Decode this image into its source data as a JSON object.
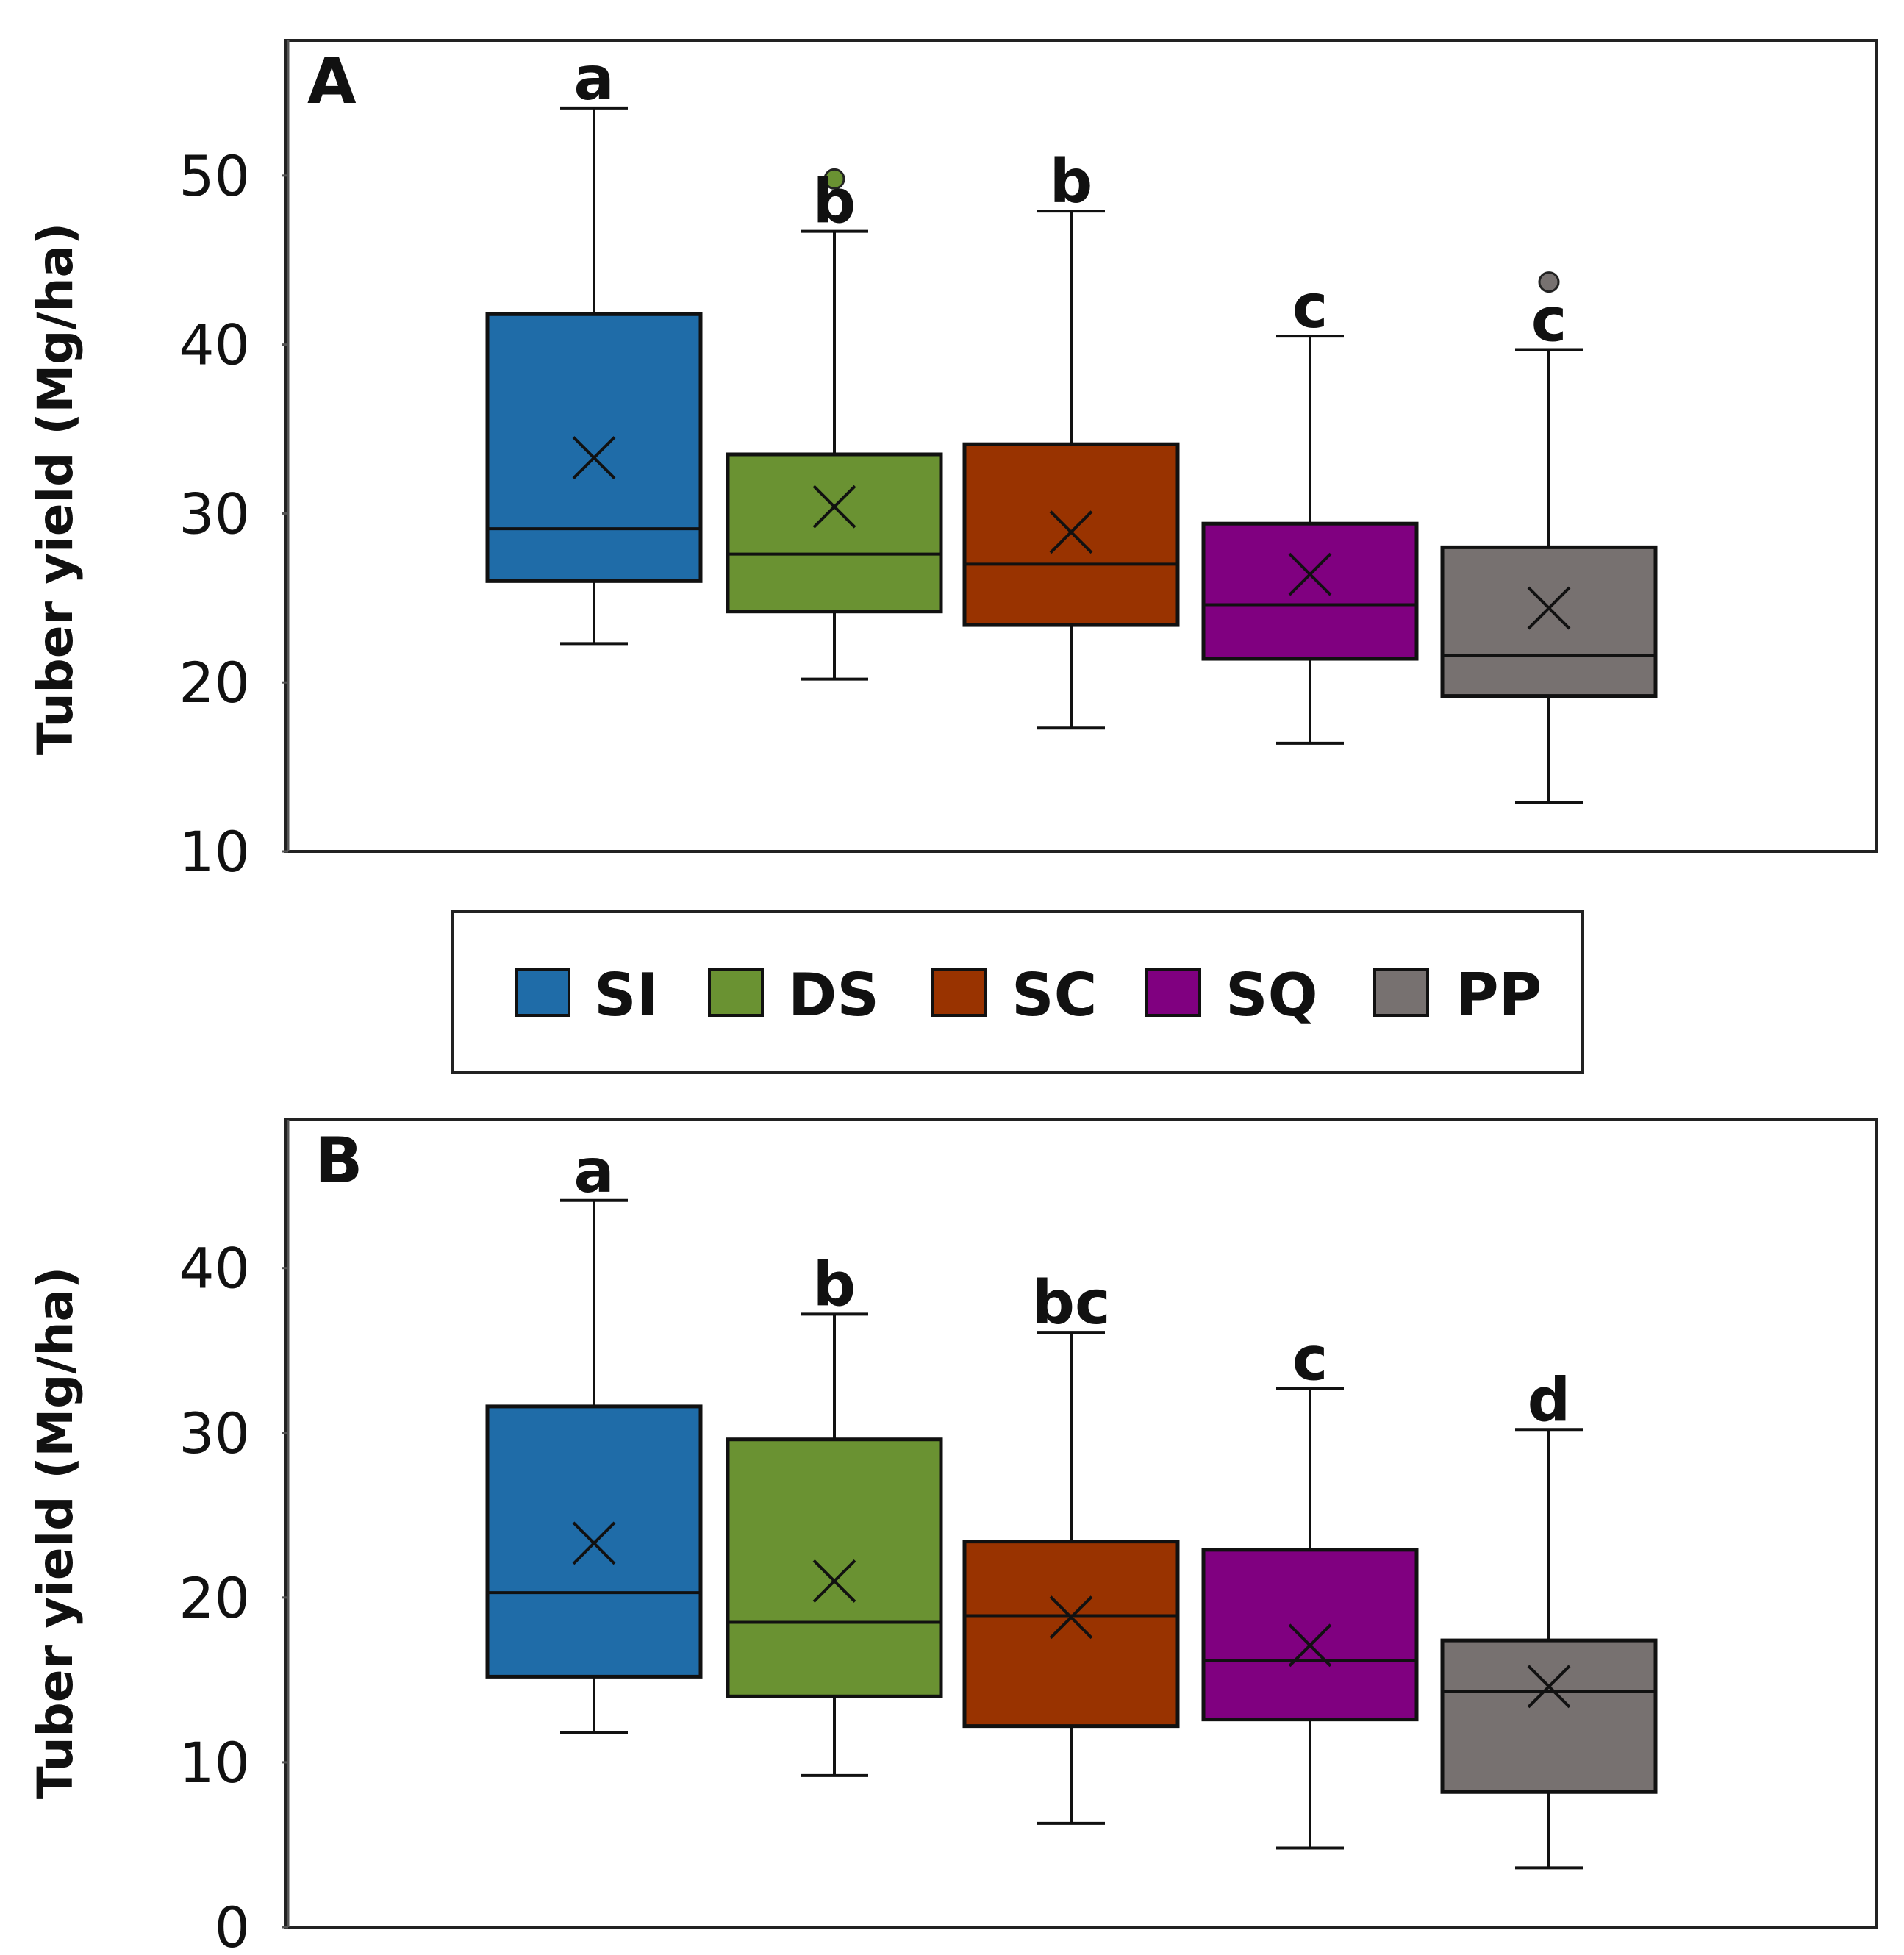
{
  "chart_data": [
    {
      "type": "boxplot",
      "panel_label": "A",
      "ylabel": "Tuber yield (Mg/ha)",
      "ylim": [
        10,
        58
      ],
      "yticks": [
        "10",
        "20",
        "30",
        "40",
        "50"
      ],
      "series": [
        {
          "name": "SI",
          "color": "#1f6ca8",
          "whisker_low": 22.3,
          "q1": 26,
          "median": 29.1,
          "q3": 41.8,
          "whisker_high": 54,
          "mean": 33.3,
          "outliers": [],
          "letter": "a"
        },
        {
          "name": "DS",
          "color": "#6a9232",
          "whisker_low": 20.2,
          "q1": 24.2,
          "median": 27.6,
          "q3": 33.5,
          "whisker_high": 46.7,
          "mean": 30.4,
          "outliers": [
            49.8
          ],
          "letter": "b"
        },
        {
          "name": "SC",
          "color": "#993300",
          "whisker_low": 17.3,
          "q1": 23.4,
          "median": 27,
          "q3": 34.1,
          "whisker_high": 47.9,
          "mean": 28.9,
          "outliers": [],
          "letter": "b"
        },
        {
          "name": "SQ",
          "color": "#800080",
          "whisker_low": 16.4,
          "q1": 21.4,
          "median": 24.6,
          "q3": 29.4,
          "whisker_high": 40.5,
          "mean": 26.4,
          "outliers": [],
          "letter": "c"
        },
        {
          "name": "PP",
          "color": "#777170",
          "whisker_low": 12.9,
          "q1": 19.2,
          "median": 21.6,
          "q3": 28,
          "whisker_high": 39.7,
          "mean": 24.4,
          "outliers": [
            43.7
          ],
          "letter": "c"
        }
      ]
    },
    {
      "type": "boxplot",
      "panel_label": "B",
      "ylabel": "Tuber yield (Mg/ha)",
      "ylim": [
        0,
        49
      ],
      "yticks": [
        "0",
        "10",
        "20",
        "30",
        "40"
      ],
      "series": [
        {
          "name": "SI",
          "color": "#1f6ca8",
          "whisker_low": 11.8,
          "q1": 15.2,
          "median": 20.3,
          "q3": 31.6,
          "whisker_high": 44.1,
          "mean": 23.3,
          "outliers": [],
          "letter": "a"
        },
        {
          "name": "DS",
          "color": "#6a9232",
          "whisker_low": 9.2,
          "q1": 14,
          "median": 18.5,
          "q3": 29.6,
          "whisker_high": 37.2,
          "mean": 21,
          "outliers": [],
          "letter": "b"
        },
        {
          "name": "SC",
          "color": "#993300",
          "whisker_low": 6.3,
          "q1": 12.2,
          "median": 18.9,
          "q3": 23.4,
          "whisker_high": 36.1,
          "mean": 18.8,
          "outliers": [],
          "letter": "bc"
        },
        {
          "name": "SQ",
          "color": "#800080",
          "whisker_low": 4.8,
          "q1": 12.6,
          "median": 16.2,
          "q3": 22.9,
          "whisker_high": 32.7,
          "mean": 17.1,
          "outliers": [],
          "letter": "c"
        },
        {
          "name": "PP",
          "color": "#777170",
          "whisker_low": 3.6,
          "q1": 8.2,
          "median": 14.3,
          "q3": 17.4,
          "whisker_high": 30.2,
          "mean": 14.6,
          "outliers": [],
          "letter": "d"
        }
      ]
    }
  ],
  "legend": {
    "items": [
      {
        "label": "SI",
        "color": "#1f6ca8"
      },
      {
        "label": "DS",
        "color": "#6a9232"
      },
      {
        "label": "SC",
        "color": "#993300"
      },
      {
        "label": "SQ",
        "color": "#800080"
      },
      {
        "label": "PP",
        "color": "#777170"
      }
    ]
  }
}
